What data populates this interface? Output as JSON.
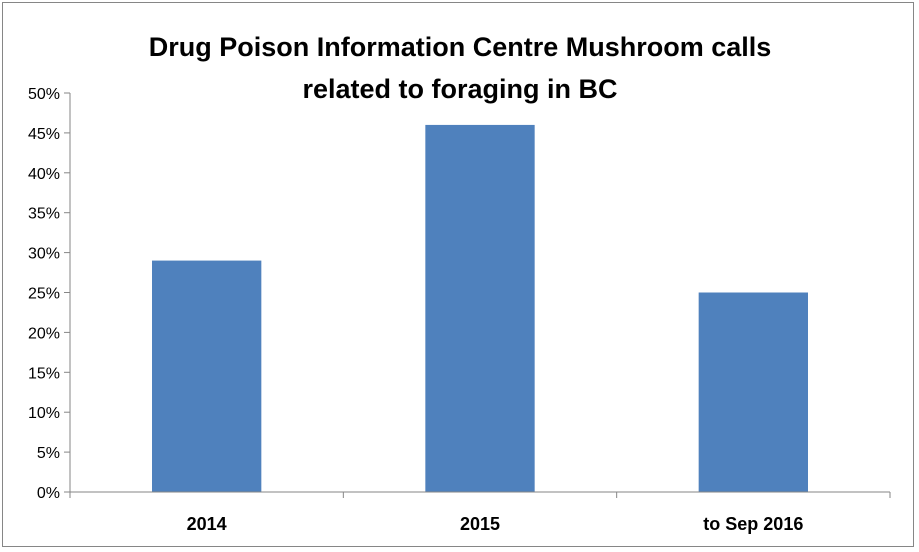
{
  "chart_data": {
    "type": "bar",
    "title": [
      "Drug Poison Information Centre  Mushroom calls",
      "related to foraging in BC"
    ],
    "categories": [
      "2014",
      "2015",
      "to Sep 2016"
    ],
    "series": [
      {
        "values": [
          29,
          46,
          25
        ]
      }
    ],
    "value_format": "percent",
    "ylim": [
      0,
      50
    ],
    "ytick_step": 5,
    "ytick_labels": [
      "0%",
      "5%",
      "10%",
      "15%",
      "20%",
      "25%",
      "30%",
      "35%",
      "40%",
      "45%",
      "50%"
    ],
    "grid": false,
    "legend": "none",
    "colors": {
      "bar": "#4F81BD",
      "axis": "#868686",
      "text": "#000000"
    }
  }
}
